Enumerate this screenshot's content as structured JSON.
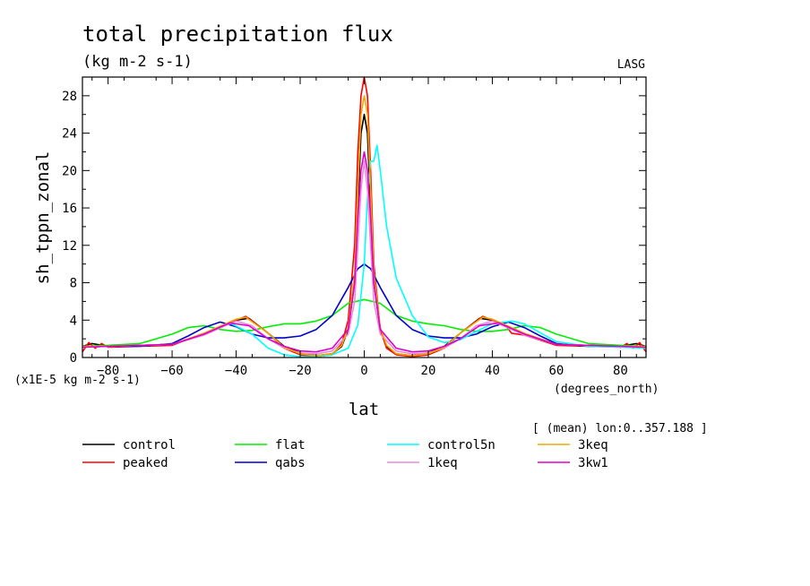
{
  "chart_data": {
    "type": "line",
    "title": "total precipitation flux",
    "subtitle": "(kg m-2 s-1)",
    "corner_label": "LASG",
    "xlabel": "lat",
    "xunits": "(degrees_north)",
    "ylabel": "sh_tppn_zonal",
    "yscale_note": "(x1E-5 kg m-2 s-1)",
    "mean_note": "[ (mean) lon:0..357.188 ]",
    "xlim": [
      -88,
      88
    ],
    "ylim": [
      0,
      30
    ],
    "xticks": [
      -80,
      -60,
      -40,
      -20,
      0,
      20,
      40,
      60,
      80
    ],
    "yticks": [
      0,
      4,
      8,
      12,
      16,
      20,
      24,
      28
    ],
    "grid": false,
    "legend_position": "bottom",
    "series": [
      {
        "name": "control",
        "color": "#000000",
        "x": [
          -88,
          -85,
          -80,
          -70,
          -60,
          -50,
          -40,
          -36,
          -30,
          -25,
          -20,
          -15,
          -10,
          -7,
          -5,
          -3,
          -2,
          -1,
          0,
          1,
          2,
          3,
          5,
          7,
          10,
          15,
          20,
          25,
          30,
          36,
          40,
          50,
          60,
          70,
          80,
          85,
          88
        ],
        "y": [
          1.2,
          1.5,
          1.2,
          1.3,
          1.4,
          2.5,
          4.0,
          4.2,
          2.6,
          1.2,
          0.5,
          0.2,
          0.4,
          1.2,
          3.0,
          8.0,
          16.0,
          24.0,
          26.0,
          24.0,
          16.0,
          8.0,
          3.0,
          1.2,
          0.4,
          0.2,
          0.5,
          1.2,
          2.6,
          4.2,
          4.0,
          2.5,
          1.4,
          1.3,
          1.2,
          1.5,
          1.2
        ]
      },
      {
        "name": "peaked",
        "color": "#ff0000",
        "x": [
          -88,
          -86,
          -84,
          -82,
          -80,
          -70,
          -60,
          -50,
          -40,
          -37,
          -30,
          -25,
          -20,
          -15,
          -10,
          -7,
          -5,
          -3,
          -2,
          -1,
          0,
          1,
          2,
          3,
          5,
          7,
          10,
          15,
          20,
          25,
          30,
          37,
          40,
          44,
          46,
          50,
          60,
          70,
          80,
          82,
          84,
          86,
          88
        ],
        "y": [
          0.6,
          1.6,
          1.0,
          1.5,
          1.1,
          1.2,
          1.3,
          2.6,
          4.0,
          4.4,
          2.6,
          1.0,
          0.3,
          0.1,
          0.3,
          1.5,
          4.0,
          12.0,
          22.0,
          28.0,
          30.0,
          28.0,
          20.0,
          10.0,
          3.0,
          1.0,
          0.3,
          0.1,
          0.3,
          1.0,
          2.6,
          4.4,
          4.0,
          3.5,
          2.6,
          2.4,
          1.3,
          1.2,
          1.1,
          1.5,
          1.0,
          1.6,
          0.6
        ]
      },
      {
        "name": "flat",
        "color": "#00ee00",
        "x": [
          -88,
          -80,
          -70,
          -60,
          -55,
          -50,
          -45,
          -40,
          -35,
          -30,
          -25,
          -20,
          -15,
          -10,
          -5,
          0,
          5,
          10,
          15,
          20,
          25,
          30,
          35,
          40,
          45,
          50,
          55,
          60,
          70,
          80,
          88
        ],
        "y": [
          1.2,
          1.3,
          1.5,
          2.5,
          3.2,
          3.4,
          3.0,
          2.8,
          2.9,
          3.3,
          3.6,
          3.6,
          3.9,
          4.5,
          5.8,
          6.2,
          5.8,
          4.5,
          3.9,
          3.6,
          3.4,
          3.0,
          2.8,
          2.8,
          3.0,
          3.4,
          3.2,
          2.5,
          1.5,
          1.3,
          1.2
        ]
      },
      {
        "name": "qabs",
        "color": "#0000cc",
        "x": [
          -88,
          -80,
          -70,
          -60,
          -55,
          -50,
          -45,
          -40,
          -35,
          -30,
          -25,
          -20,
          -15,
          -10,
          -5,
          -2,
          0,
          2,
          5,
          10,
          15,
          20,
          25,
          30,
          35,
          40,
          45,
          50,
          55,
          60,
          70,
          80,
          88
        ],
        "y": [
          1.1,
          1.2,
          1.2,
          1.5,
          2.3,
          3.2,
          3.8,
          3.3,
          2.5,
          2.1,
          2.1,
          2.3,
          3.0,
          4.5,
          7.5,
          9.5,
          10.0,
          9.5,
          7.5,
          4.5,
          3.0,
          2.3,
          2.1,
          2.1,
          2.5,
          3.3,
          3.8,
          3.2,
          2.3,
          1.5,
          1.2,
          1.2,
          1.1
        ]
      },
      {
        "name": "control5n",
        "color": "#00ffff",
        "x": [
          -88,
          -80,
          -70,
          -60,
          -50,
          -42,
          -35,
          -30,
          -25,
          -20,
          -15,
          -10,
          -5,
          -2,
          0,
          1,
          2,
          3,
          4,
          5,
          7,
          10,
          15,
          20,
          25,
          30,
          35,
          40,
          46,
          50,
          60,
          70,
          80,
          88
        ],
        "y": [
          1.1,
          1.2,
          1.3,
          1.4,
          2.5,
          3.7,
          2.5,
          1.0,
          0.3,
          0.1,
          0.1,
          0.3,
          1.0,
          3.5,
          10.0,
          17.0,
          21.0,
          21.0,
          22.7,
          20.0,
          14.0,
          8.5,
          4.5,
          2.2,
          1.6,
          1.9,
          2.8,
          3.6,
          3.9,
          3.6,
          1.7,
          1.2,
          1.1,
          1.0
        ]
      },
      {
        "name": "1keq",
        "color": "#ee88dd",
        "x": [
          -88,
          -80,
          -70,
          -60,
          -50,
          -40,
          -35,
          -30,
          -25,
          -20,
          -15,
          -10,
          -5,
          -3,
          -2,
          -1,
          0,
          1,
          2,
          3,
          5,
          10,
          15,
          20,
          25,
          30,
          35,
          40,
          50,
          60,
          70,
          80,
          88
        ],
        "y": [
          1.1,
          1.2,
          1.3,
          1.4,
          2.4,
          3.9,
          3.4,
          2.0,
          1.0,
          0.5,
          0.4,
          0.7,
          2.5,
          6.0,
          12.0,
          18.0,
          21.0,
          18.0,
          12.0,
          6.0,
          2.5,
          0.7,
          0.4,
          0.5,
          1.0,
          2.0,
          3.4,
          3.9,
          2.4,
          1.4,
          1.3,
          1.2,
          1.1
        ]
      },
      {
        "name": "3keq",
        "color": "#eeaa00",
        "x": [
          -88,
          -80,
          -70,
          -60,
          -50,
          -40,
          -37,
          -30,
          -25,
          -20,
          -15,
          -10,
          -7,
          -5,
          -3,
          -2,
          -1,
          0,
          1,
          2,
          3,
          5,
          7,
          10,
          15,
          20,
          25,
          30,
          37,
          40,
          50,
          60,
          70,
          80,
          88
        ],
        "y": [
          1.2,
          1.2,
          1.3,
          1.4,
          2.6,
          4.1,
          4.3,
          2.6,
          1.1,
          0.4,
          0.2,
          0.4,
          1.3,
          3.2,
          9.0,
          18.0,
          26.0,
          28.0,
          26.0,
          18.0,
          9.0,
          3.2,
          1.3,
          0.4,
          0.2,
          0.4,
          1.1,
          2.6,
          4.3,
          4.1,
          2.6,
          1.4,
          1.3,
          1.2,
          1.2
        ]
      },
      {
        "name": "3kw1",
        "color": "#dd00cc",
        "x": [
          -88,
          -80,
          -70,
          -60,
          -50,
          -42,
          -36,
          -30,
          -25,
          -20,
          -15,
          -10,
          -5,
          -3,
          -2,
          -1,
          0,
          1,
          2,
          3,
          5,
          10,
          15,
          20,
          25,
          30,
          36,
          42,
          50,
          60,
          70,
          80,
          88
        ],
        "y": [
          1.1,
          1.2,
          1.3,
          1.4,
          2.5,
          3.7,
          3.4,
          2.0,
          1.2,
          0.7,
          0.6,
          1.0,
          3.0,
          8.0,
          15.0,
          20.0,
          22.0,
          20.0,
          15.0,
          8.0,
          3.0,
          1.0,
          0.6,
          0.7,
          1.2,
          2.0,
          3.4,
          3.7,
          2.5,
          1.4,
          1.3,
          1.2,
          1.1
        ]
      }
    ]
  }
}
